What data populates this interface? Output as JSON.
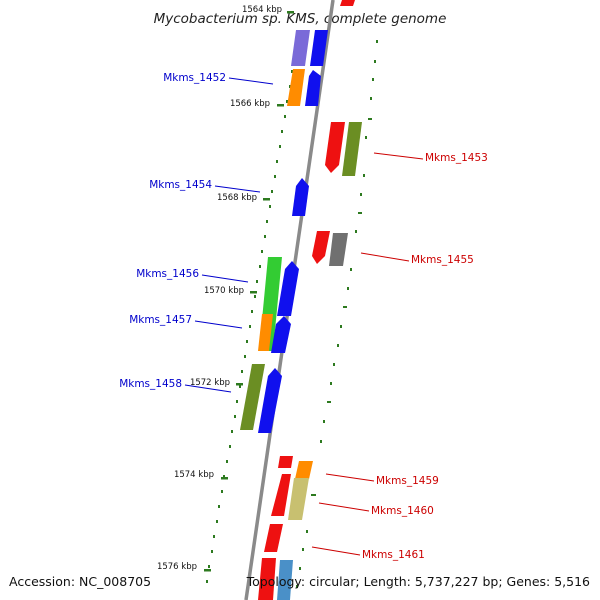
{
  "title": "Mycobacterium sp. KMS, complete genome",
  "footer": {
    "accession": "Accession: NC_008705",
    "topology": "Topology: circular; Length: 5,737,227 bp; Genes: 5,516"
  },
  "colors": {
    "backbone": "#8a8a8a",
    "tick": "#2d7a1f",
    "left_label": "#0000cc",
    "right_label": "#cc0000",
    "blue": "#1010ee",
    "purple": "#7a6ad8",
    "orange": "#ff8c00",
    "red": "#ee1111",
    "olive": "#6b8e23",
    "gray": "#707070",
    "green": "#33cc33",
    "khaki": "#c8c070",
    "steel": "#4a90c8"
  },
  "kbp_labels": [
    "1564 kbp",
    "1566 kbp",
    "1568 kbp",
    "1570 kbp",
    "1572 kbp",
    "1574 kbp",
    "1576 kbp"
  ],
  "gene_labels_left": [
    "Mkms_1452",
    "Mkms_1454",
    "Mkms_1456",
    "Mkms_1457",
    "Mkms_1458"
  ],
  "gene_labels_right": [
    "Mkms_1453",
    "Mkms_1455",
    "Mkms_1459",
    "Mkms_1460",
    "Mkms_1461"
  ]
}
